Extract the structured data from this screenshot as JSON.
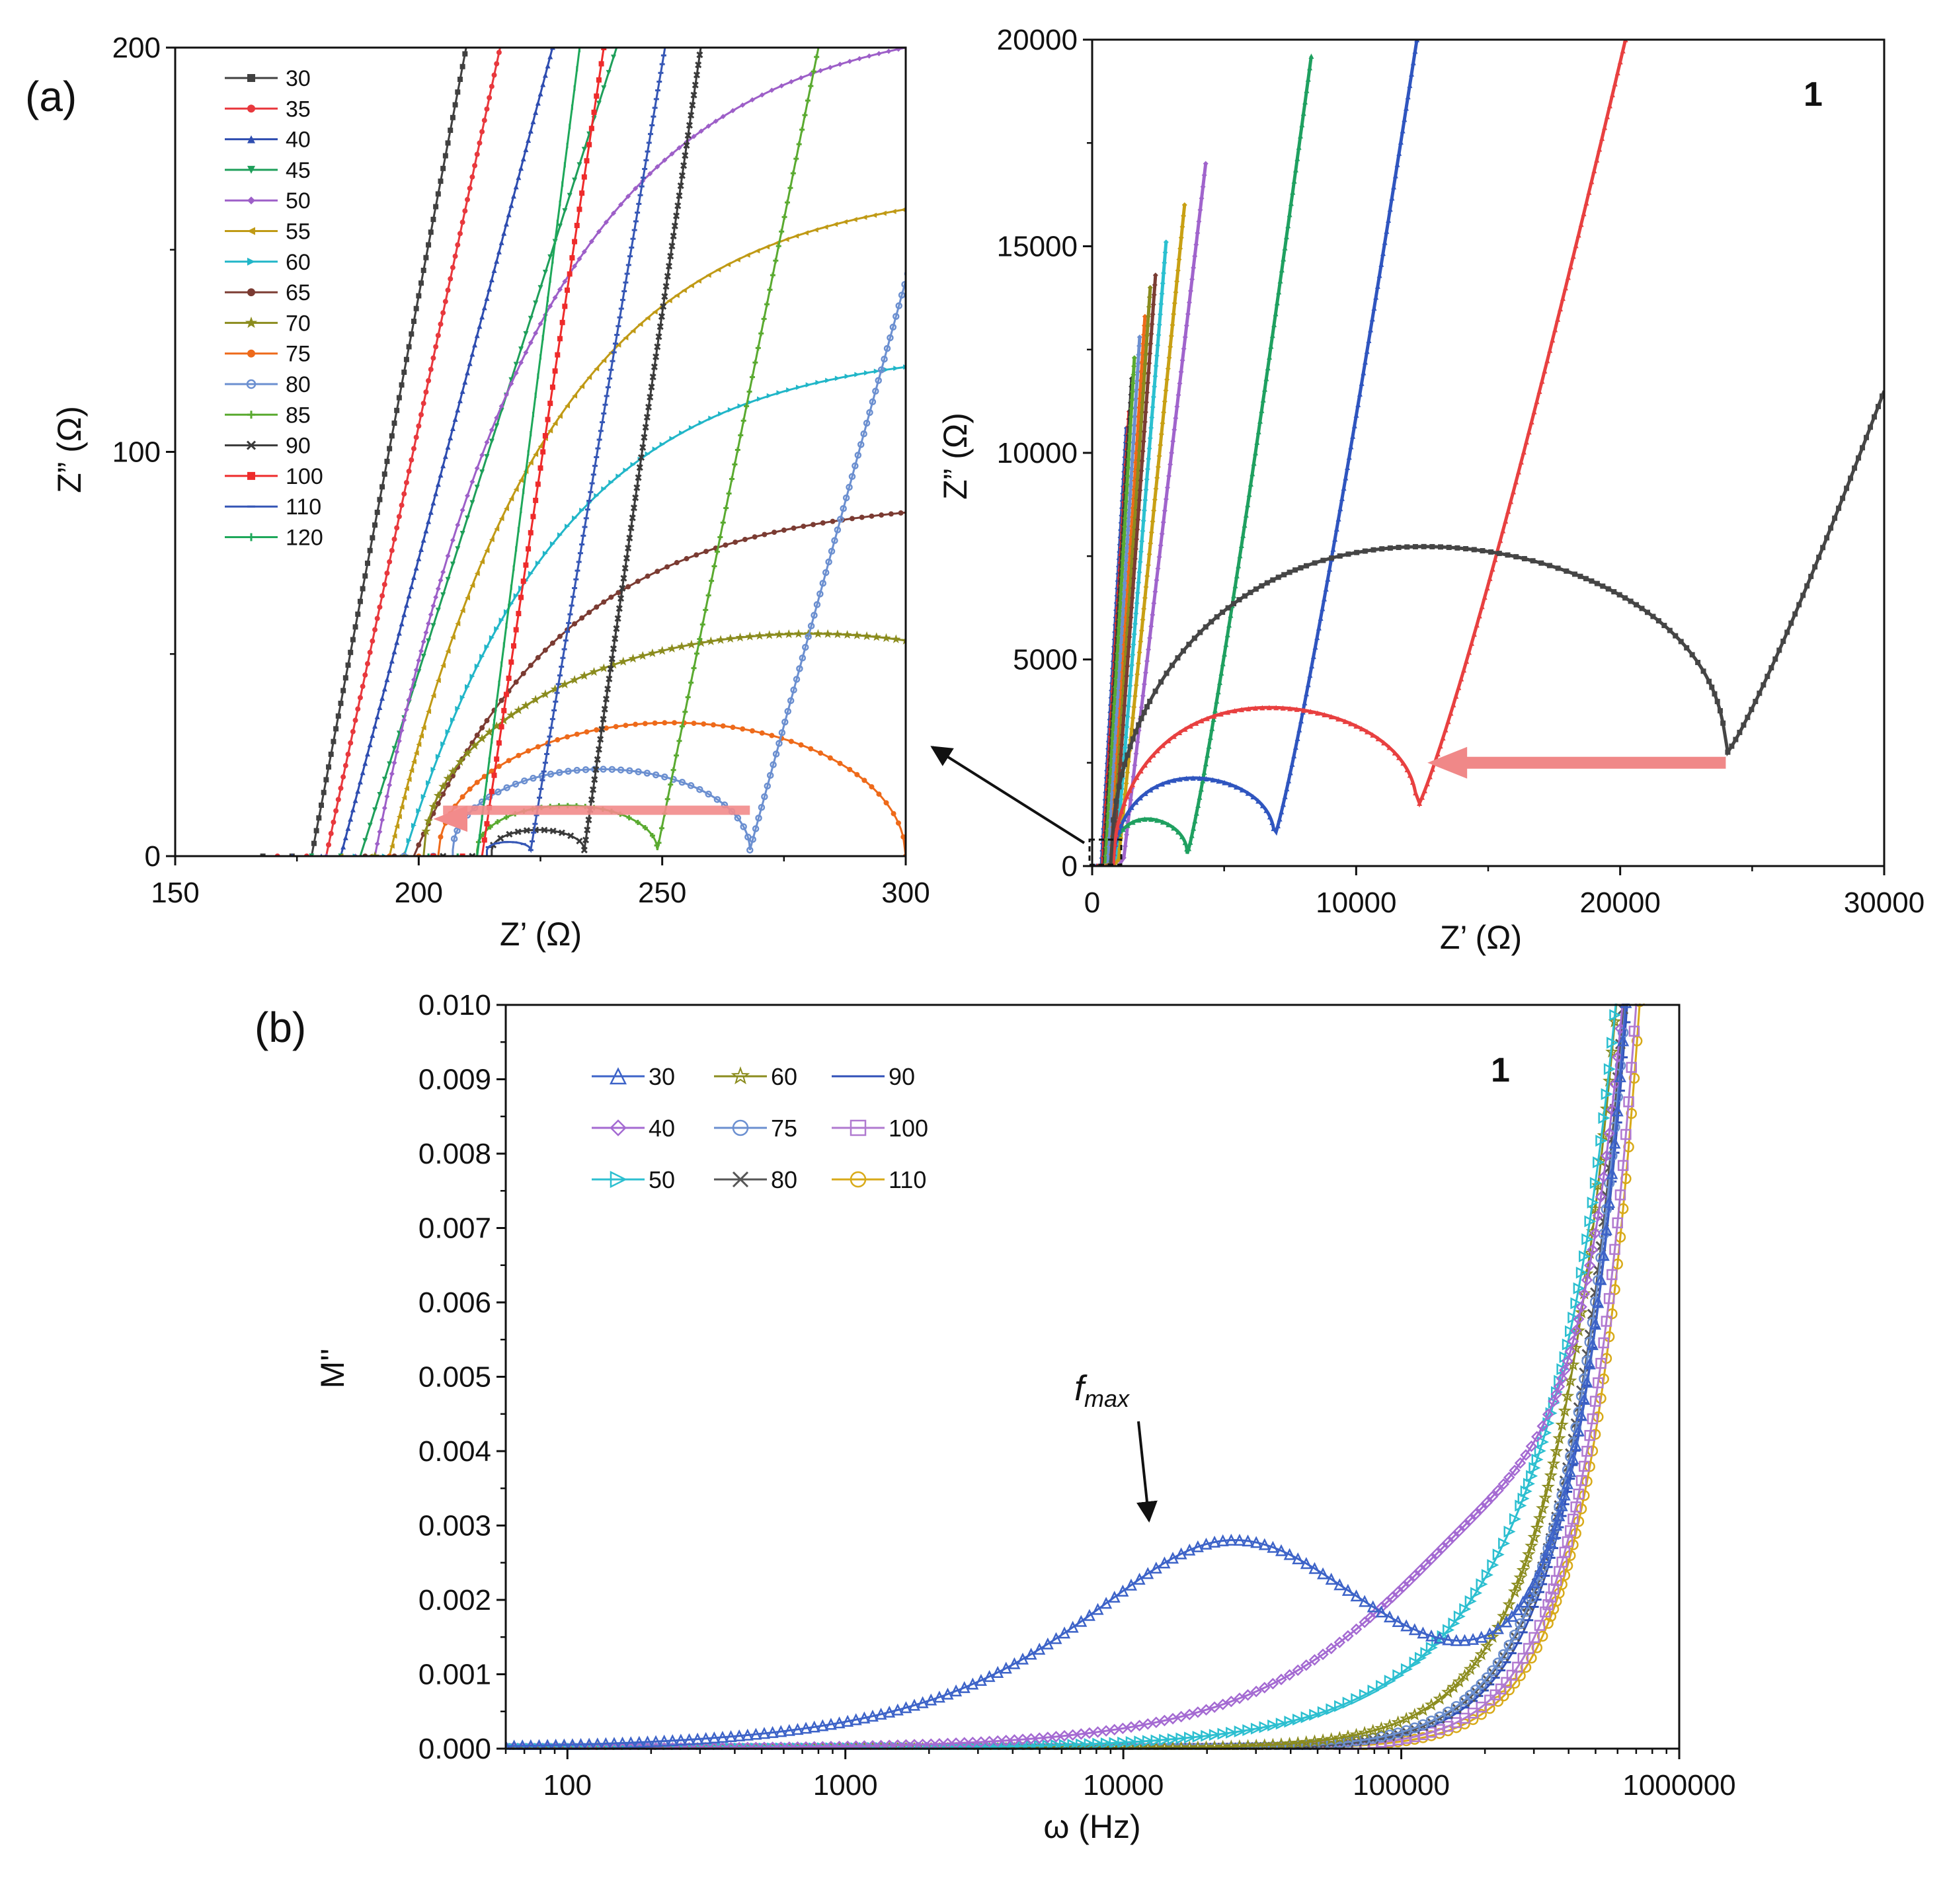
{
  "figure": {
    "panel_a_label": "(a)",
    "panel_b_label": "(b)",
    "inset_label": "1",
    "panel_b_tag": "1",
    "annotation": "f",
    "annotation_sub": "max"
  },
  "chart_data": [
    {
      "type": "line",
      "title": "",
      "xlabel": "Z’ (Ω)",
      "ylabel": "Z” (Ω)",
      "xlim": [
        150,
        300
      ],
      "ylim": [
        0,
        200
      ],
      "xticks": [
        150,
        200,
        250,
        300
      ],
      "yticks": [
        0,
        100,
        200
      ],
      "legend_position": "top-left",
      "series": [
        {
          "name": "30",
          "color": "#404040",
          "marker": "square",
          "shape": "line",
          "x0": 178,
          "slope": 6.3
        },
        {
          "name": "35",
          "color": "#e8383d",
          "marker": "circle",
          "shape": "line",
          "x0": 181,
          "slope": 5.6
        },
        {
          "name": "40",
          "color": "#2e4db0",
          "marker": "triangle",
          "shape": "line",
          "x0": 184,
          "slope": 4.6
        },
        {
          "name": "45",
          "color": "#1e9f5a",
          "marker": "tri-down",
          "shape": "line",
          "x0": 188,
          "slope": 3.8
        },
        {
          "name": "50",
          "color": "#9d5fc8",
          "marker": "diamond",
          "shape": "curve",
          "x0": 191,
          "y_end": 200,
          "x_end": 300
        },
        {
          "name": "55",
          "color": "#c09a15",
          "marker": "tri-left",
          "shape": "curve",
          "x0": 194,
          "y_end": 160,
          "x_end": 300
        },
        {
          "name": "60",
          "color": "#21b6c8",
          "marker": "tri-right",
          "shape": "curve",
          "x0": 197,
          "y_end": 121,
          "x_end": 300
        },
        {
          "name": "65",
          "color": "#7b3b32",
          "marker": "hexagon",
          "shape": "curve",
          "x0": 199,
          "y_end": 85,
          "x_end": 300
        },
        {
          "name": "70",
          "color": "#8b8c1e",
          "marker": "star",
          "shape": "arc",
          "x0": 201,
          "x1": 360,
          "height": 55
        },
        {
          "name": "75",
          "color": "#ee6a1a",
          "marker": "pentagon",
          "shape": "arc",
          "x0": 204,
          "x1": 300,
          "height": 33
        },
        {
          "name": "80",
          "color": "#6b8fd0",
          "marker": "open-circle",
          "shape": "arc-spur",
          "x0": 207,
          "x1": 268,
          "height": 20,
          "spur_slope": 4.4
        },
        {
          "name": "85",
          "color": "#5aaa30",
          "marker": "plus",
          "shape": "arc-spur",
          "x0": 212,
          "x1": 249,
          "height": 11,
          "spur_slope": 6.0
        },
        {
          "name": "90",
          "color": "#3a3a3a",
          "marker": "x",
          "shape": "arc-spur",
          "x0": 215,
          "x1": 234,
          "height": 5,
          "spur_slope": 8.3
        },
        {
          "name": "100",
          "color": "#ee2b2b",
          "marker": "filled-square",
          "shape": "line",
          "x0": 213,
          "slope": 8.0
        },
        {
          "name": "110",
          "color": "#3556b5",
          "marker": "dash",
          "shape": "arc-spur",
          "x0": 214,
          "x1": 223,
          "height": 2,
          "spur_slope": 7.2
        },
        {
          "name": "120",
          "color": "#1ea85a",
          "marker": "bar",
          "shape": "line",
          "x0": 212,
          "slope": 9.5
        }
      ]
    },
    {
      "type": "line",
      "title": "",
      "xlabel": "Z’ (Ω)",
      "ylabel": "Z” (Ω)",
      "xlim": [
        0,
        30000
      ],
      "ylim": [
        0,
        20000
      ],
      "xticks": [
        0,
        10000,
        20000,
        30000
      ],
      "yticks": [
        0,
        5000,
        10000,
        15000,
        20000
      ],
      "series": [
        {
          "name": "30",
          "color": "#454545",
          "arc": [
            700,
            24000
          ],
          "arc_height": 8300,
          "min_y": 2700,
          "spur_end": [
            30000,
            11500
          ]
        },
        {
          "name": "35",
          "color": "#e84040",
          "arc": [
            800,
            12300
          ],
          "arc_height": 4100,
          "min_y": 1400,
          "spur_end": [
            20200,
            20000
          ]
        },
        {
          "name": "40",
          "color": "#2f55bf",
          "arc": [
            800,
            6900
          ],
          "arc_height": 2300,
          "min_y": 700,
          "spur_end": [
            12300,
            20000
          ]
        },
        {
          "name": "45",
          "color": "#1fa060",
          "arc": [
            700,
            3600
          ],
          "arc_height": 1250,
          "min_y": 300,
          "spur_end": [
            8300,
            19600
          ]
        },
        {
          "name": "50",
          "color": "#a064cc",
          "spur_start": [
            1200,
            200
          ],
          "spur_end": [
            4300,
            17000
          ]
        },
        {
          "name": "55",
          "color": "#c8a014",
          "spur_start": [
            1000,
            150
          ],
          "spur_end": [
            3500,
            16000
          ]
        },
        {
          "name": "60",
          "color": "#2cc0d0",
          "spur_start": [
            900,
            120
          ],
          "spur_end": [
            2800,
            15100
          ]
        },
        {
          "name": "65",
          "color": "#7a3d33",
          "spur_start": [
            800,
            100
          ],
          "spur_end": [
            2400,
            14300
          ]
        },
        {
          "name": "70",
          "color": "#8b8c1e",
          "spur_start": [
            750,
            80
          ],
          "spur_end": [
            2200,
            14000
          ]
        },
        {
          "name": "75",
          "color": "#ee6a1a",
          "spur_start": [
            700,
            60
          ],
          "spur_end": [
            2000,
            13300
          ]
        },
        {
          "name": "80",
          "color": "#6b8fd0",
          "spur_start": [
            600,
            50
          ],
          "spur_end": [
            1800,
            12800
          ]
        },
        {
          "name": "85",
          "color": "#5aaa30",
          "spur_start": [
            500,
            40
          ],
          "spur_end": [
            1600,
            12300
          ]
        },
        {
          "name": "90",
          "color": "#3a3a3a",
          "spur_start": [
            450,
            30
          ],
          "spur_end": [
            1500,
            11800
          ]
        },
        {
          "name": "100",
          "color": "#ee2b2b",
          "spur_start": [
            400,
            20
          ],
          "spur_end": [
            1400,
            11000
          ]
        },
        {
          "name": "110",
          "color": "#3556b5",
          "spur_start": [
            350,
            15
          ],
          "spur_end": [
            1300,
            10600
          ]
        }
      ],
      "annotations": [
        {
          "type": "arrow",
          "from": [
            24000,
            2500
          ],
          "to": [
            12700,
            2500
          ],
          "color": "#f08888"
        }
      ]
    },
    {
      "type": "line",
      "title": "",
      "xlabel": "ω (Hz)",
      "ylabel": "M''",
      "xscale": "log",
      "xlim": [
        60,
        1000000
      ],
      "ylim": [
        0.0,
        0.01
      ],
      "xticks": [
        100,
        1000,
        10000,
        100000,
        1000000
      ],
      "xticklabels": [
        "100",
        "1000",
        "10000",
        "100000",
        "1000000"
      ],
      "yticks": [
        0.0,
        0.001,
        0.002,
        0.003,
        0.004,
        0.005,
        0.006,
        0.007,
        0.008,
        0.009,
        0.01
      ],
      "yticklabels": [
        "0.000",
        "0.001",
        "0.002",
        "0.003",
        "0.004",
        "0.005",
        "0.006",
        "0.007",
        "0.008",
        "0.009",
        "0.010"
      ],
      "legend_position": "top-left",
      "series": [
        {
          "name": "30",
          "color": "#3d63c8",
          "marker": "open-triangle",
          "A": 0.0028,
          "fpk": 25000,
          "beta": 0.85,
          "B": 0.0082,
          "fup": 600000,
          "n": 2.4
        },
        {
          "name": "40",
          "color": "#a46ad2",
          "marker": "open-diamond",
          "A": 0.0028,
          "fpk": 240000,
          "beta": 0.95,
          "B": 0.0079,
          "fup": 620000,
          "n": 2.4
        },
        {
          "name": "50",
          "color": "#2cbfd0",
          "marker": "open-tri-right",
          "A": 0.0025,
          "fpk": 500000,
          "beta": 1.05,
          "B": 0.0078,
          "fup": 600000,
          "n": 2.3
        },
        {
          "name": "60",
          "color": "#8b8c1e",
          "marker": "open-star",
          "A": 0.0,
          "fpk": 1,
          "beta": 1.0,
          "B": 0.0102,
          "fup": 600000,
          "n": 1.85
        },
        {
          "name": "75",
          "color": "#6b8fd0",
          "marker": "open-circle",
          "A": 0.0,
          "fpk": 1,
          "beta": 1.0,
          "B": 0.01,
          "fup": 640000,
          "n": 2.05
        },
        {
          "name": "80",
          "color": "#555555",
          "marker": "x",
          "A": 0.0,
          "fpk": 1,
          "beta": 1.0,
          "B": 0.01,
          "fup": 630000,
          "n": 2.1
        },
        {
          "name": "90",
          "color": "#3050b8",
          "marker": "dash",
          "A": 0.0,
          "fpk": 1,
          "beta": 1.0,
          "B": 0.01,
          "fup": 650000,
          "n": 2.15
        },
        {
          "name": "100",
          "color": "#b07ad0",
          "marker": "open-square",
          "A": 0.0,
          "fpk": 1,
          "beta": 1.0,
          "B": 0.01,
          "fup": 700000,
          "n": 2.25
        },
        {
          "name": "110",
          "color": "#d8aa18",
          "marker": "open-circle",
          "A": 0.0,
          "fpk": 1,
          "beta": 1.0,
          "B": 0.01,
          "fup": 720000,
          "n": 2.35
        }
      ],
      "legend_columns": [
        [
          "30",
          "40",
          "50"
        ],
        [
          "60",
          "75",
          "80"
        ],
        [
          "90",
          "100",
          "110"
        ]
      ]
    }
  ]
}
